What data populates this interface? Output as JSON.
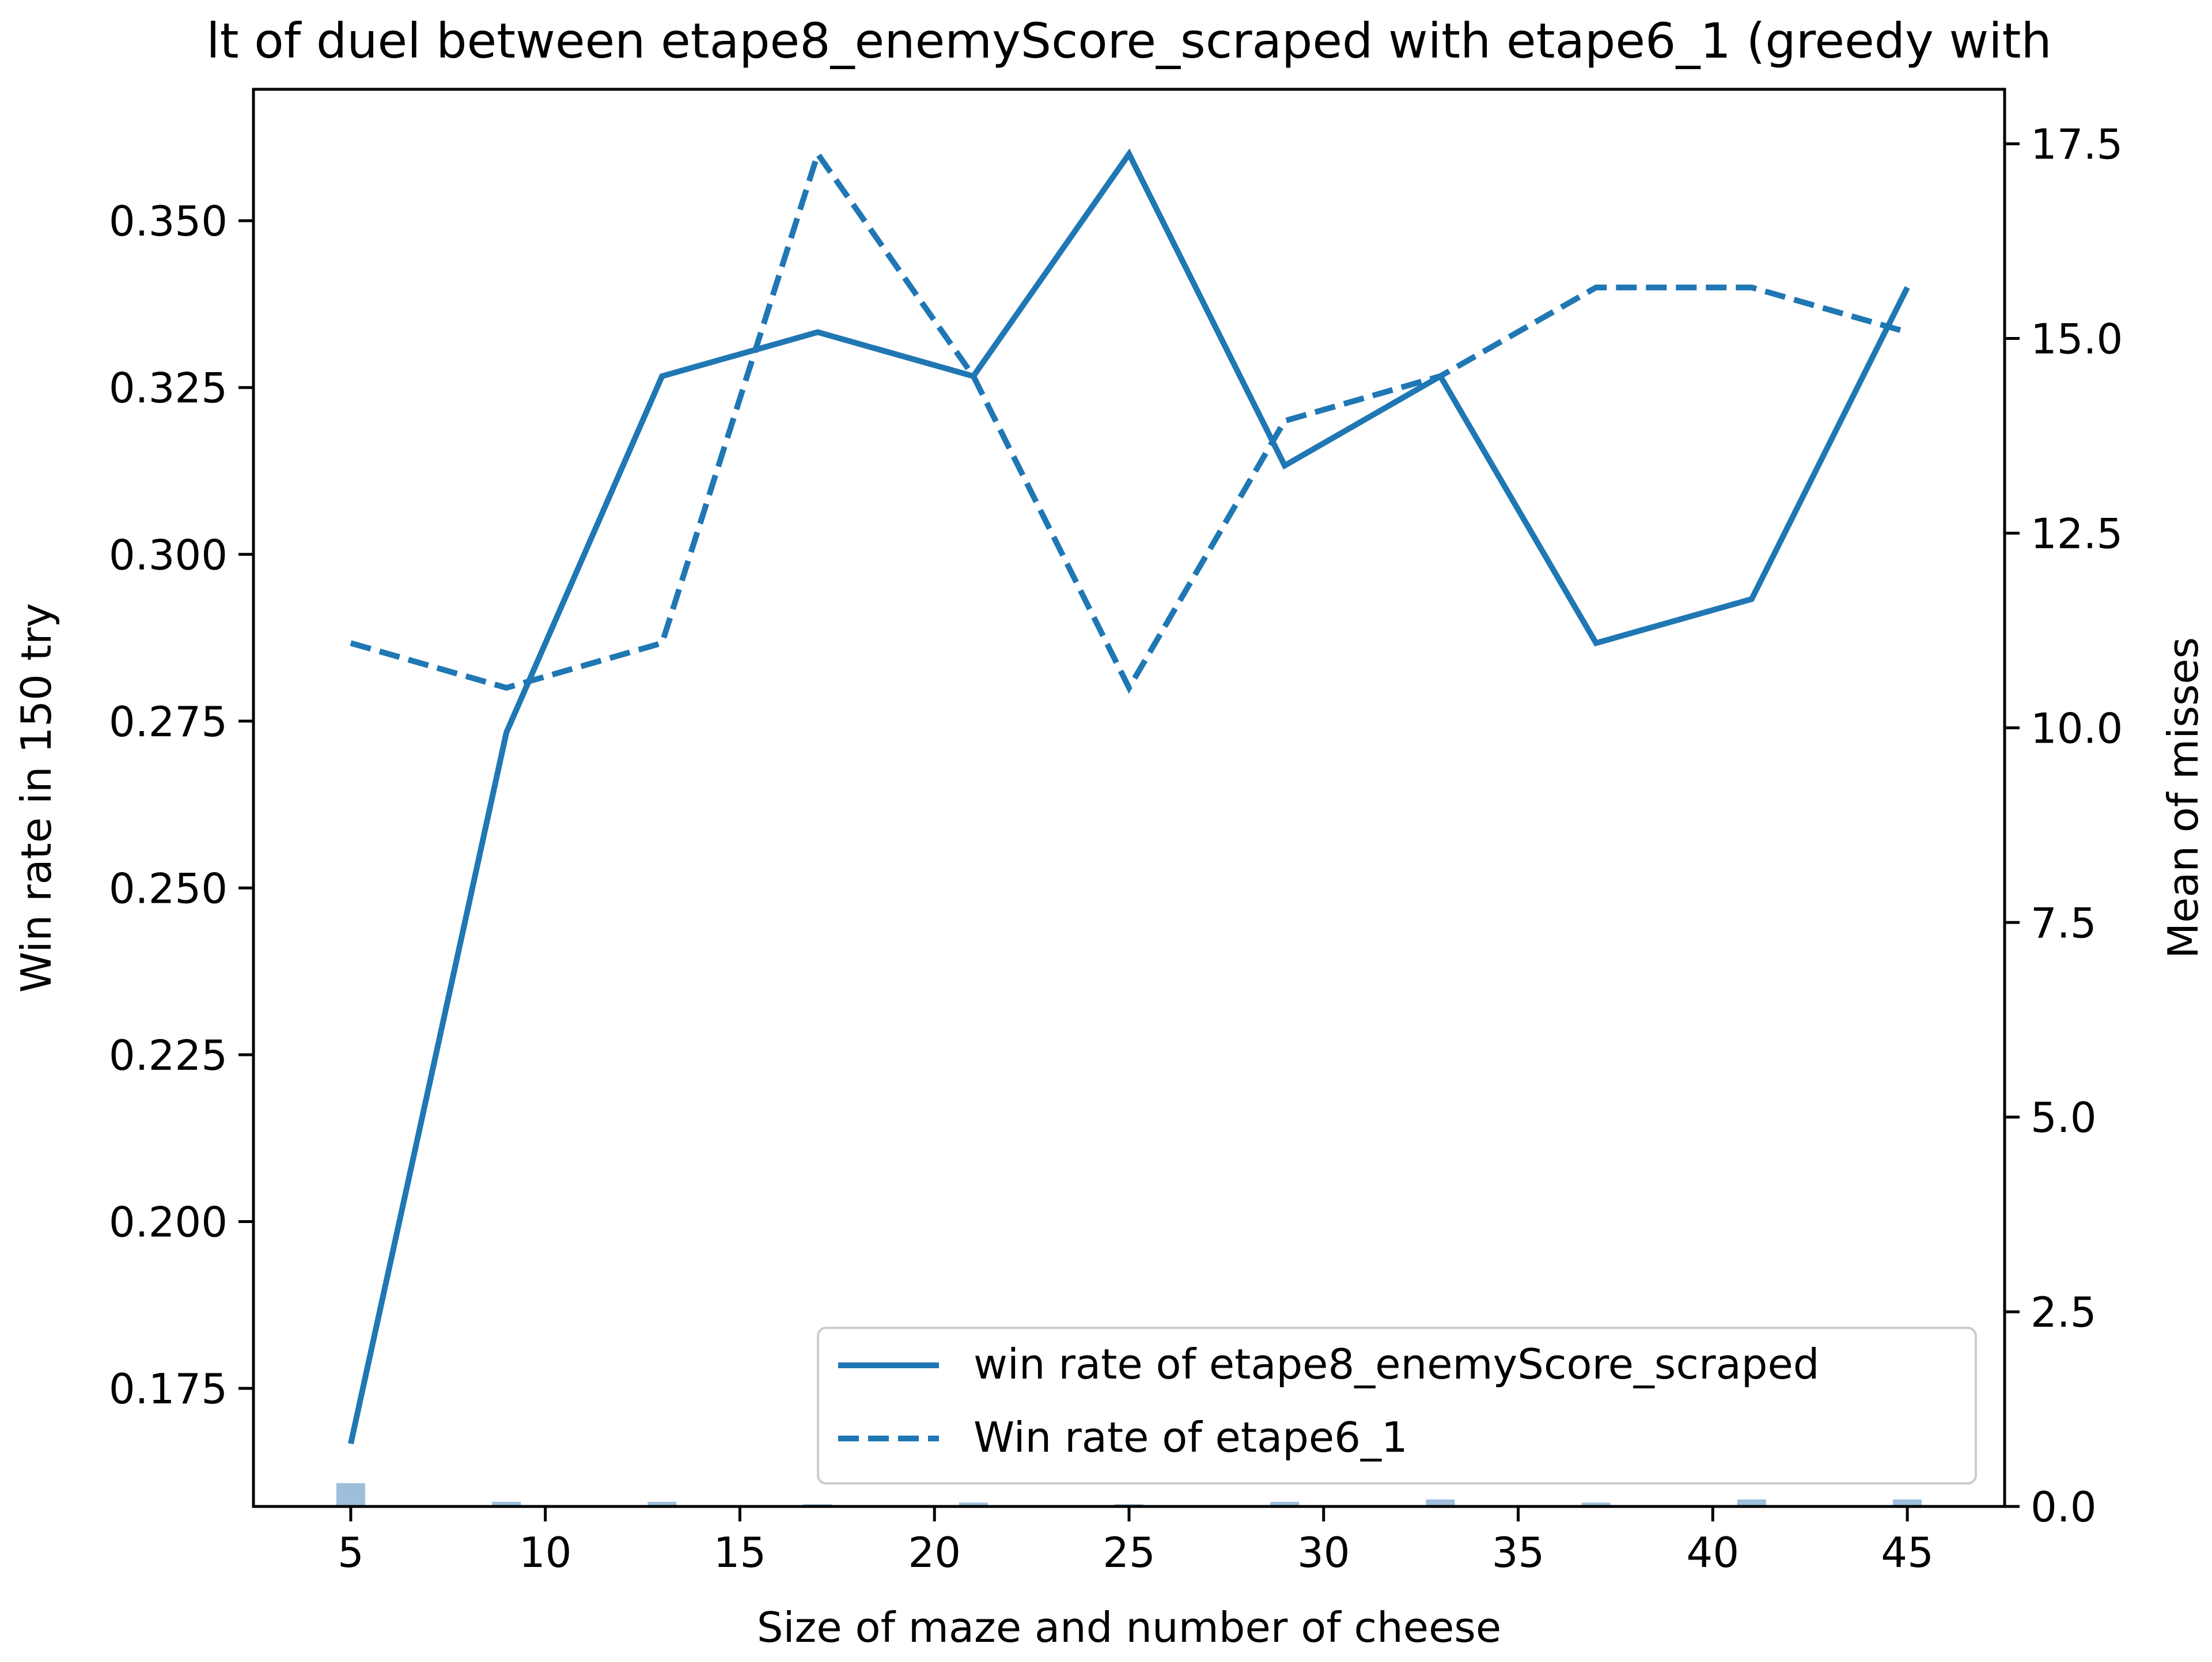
{
  "chart_data": {
    "type": "line",
    "title": "lt of duel between etape8_enemyScore_scraped with etape6_1 (greedy with",
    "xlabel": "Size of maze and number of cheese",
    "ylabel": "Win rate in 150 try",
    "y2label": "Mean of misses",
    "x": [
      5,
      9,
      13,
      17,
      21,
      25,
      29,
      33,
      37,
      41,
      45
    ],
    "xlim": [
      2.5,
      47.5
    ],
    "ylim": [
      0.1573,
      0.3697
    ],
    "y2lim": [
      0.0,
      18.2
    ],
    "xticks": [
      "5",
      "10",
      "15",
      "20",
      "25",
      "30",
      "35",
      "40",
      "45"
    ],
    "yticks": [
      "0.175",
      "0.200",
      "0.225",
      "0.250",
      "0.275",
      "0.300",
      "0.325",
      "0.350"
    ],
    "y2ticks": [
      "0.0",
      "2.5",
      "5.0",
      "7.5",
      "10.0",
      "12.5",
      "15.0",
      "17.5"
    ],
    "series": [
      {
        "name": "win rate of etape8_enemyScore_scraped",
        "axis": "left",
        "style": "solid",
        "color": "#1f77b4",
        "values": [
          0.1667,
          0.2733,
          0.3267,
          0.3333,
          0.3267,
          0.36,
          0.3133,
          0.3267,
          0.2867,
          0.2933,
          0.34
        ]
      },
      {
        "name": "Win rate of etape6_1",
        "axis": "left",
        "style": "dashed",
        "color": "#1f77b4",
        "values": [
          0.2867,
          0.28,
          0.2867,
          0.36,
          0.3267,
          0.28,
          0.32,
          0.3267,
          0.34,
          0.34,
          0.3333
        ]
      },
      {
        "name": "",
        "axis": "right",
        "style": "bar",
        "color": "#9dbfdc",
        "values": [
          0.3,
          0.06,
          0.06,
          0.03,
          0.05,
          0.03,
          0.06,
          0.09,
          0.05,
          0.09,
          0.09
        ]
      }
    ],
    "grid": false,
    "legend_position": "lower-right"
  }
}
